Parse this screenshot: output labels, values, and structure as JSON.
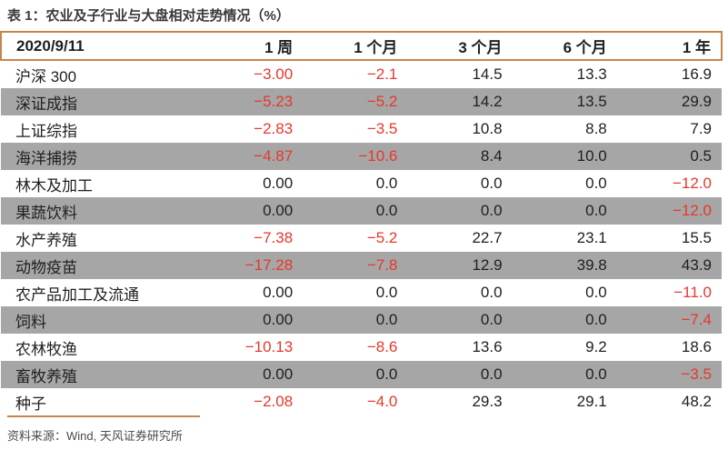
{
  "title": "表 1：农业及子行业与大盘相对走势情况（%）",
  "colors": {
    "accent": "#C8854B",
    "stripe": "#A6A6A6",
    "negative": "#E6382C",
    "text": "#1F1F1F"
  },
  "table": {
    "columns": [
      "2020/9/11",
      "1 周",
      "1 个月",
      "3 个月",
      "6 个月",
      "1 年"
    ],
    "rows": [
      {
        "label": "沪深 300",
        "values": [
          "-3.00",
          "-2.1",
          "14.5",
          "13.3",
          "16.9"
        ]
      },
      {
        "label": "深证成指",
        "values": [
          "-5.23",
          "-5.2",
          "14.2",
          "13.5",
          "29.9"
        ]
      },
      {
        "label": "上证综指",
        "values": [
          "-2.83",
          "-3.5",
          "10.8",
          "8.8",
          "7.9"
        ]
      },
      {
        "label": "海洋捕捞",
        "values": [
          "-4.87",
          "-10.6",
          "8.4",
          "10.0",
          "0.5"
        ]
      },
      {
        "label": "林木及加工",
        "values": [
          "0.00",
          "0.0",
          "0.0",
          "0.0",
          "-12.0"
        ]
      },
      {
        "label": "果蔬饮料",
        "values": [
          "0.00",
          "0.0",
          "0.0",
          "0.0",
          "-12.0"
        ]
      },
      {
        "label": "水产养殖",
        "values": [
          "-7.38",
          "-5.2",
          "22.7",
          "23.1",
          "15.5"
        ]
      },
      {
        "label": "动物疫苗",
        "values": [
          "-17.28",
          "-7.8",
          "12.9",
          "39.8",
          "43.9"
        ]
      },
      {
        "label": "农产品加工及流通",
        "values": [
          "0.00",
          "0.0",
          "0.0",
          "0.0",
          "-11.0"
        ]
      },
      {
        "label": "饲料",
        "values": [
          "0.00",
          "0.0",
          "0.0",
          "0.0",
          "-7.4"
        ]
      },
      {
        "label": "农林牧渔",
        "values": [
          "-10.13",
          "-8.6",
          "13.6",
          "9.2",
          "18.6"
        ]
      },
      {
        "label": "畜牧养殖",
        "values": [
          "0.00",
          "0.0",
          "0.0",
          "0.0",
          "-3.5"
        ]
      },
      {
        "label": "种子",
        "values": [
          "-2.08",
          "-4.0",
          "29.3",
          "29.1",
          "48.2"
        ]
      }
    ]
  },
  "source": "资料来源：Wind, 天风证券研究所"
}
